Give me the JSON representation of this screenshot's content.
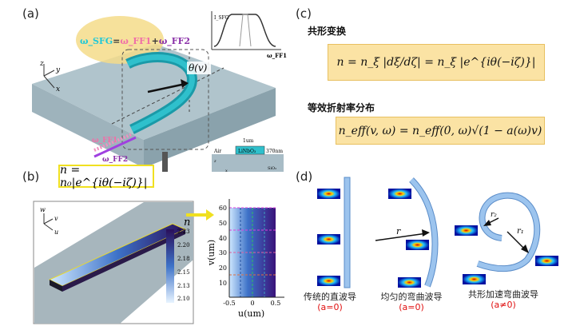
{
  "panel_a": {
    "label": "(a)",
    "omega_eq": {
      "sfg": "ω_SFG",
      "eq": "=",
      "ff1": "ω_FF1",
      "plus": "+",
      "ff2": "ω_FF2"
    },
    "theta_label": "θ(v)",
    "axes": {
      "z": "z",
      "y": "y",
      "x": "x"
    },
    "input_ff1": "ω_FF1",
    "input_ff2": "ω_FF2",
    "inset_plot": {
      "ylabel": "I_SFG",
      "xlabel": "ω_FF1"
    },
    "cross_section": {
      "width_label": "1um",
      "height_label": "370nm",
      "core": "LiNbO₃",
      "cladding": "Air",
      "substrate": "SiO₂",
      "axis_z": "z",
      "axis_x": "x"
    }
  },
  "panel_b": {
    "label": "(b)",
    "formula": "n = n₀|e^{iθ(−iζ)}|",
    "axes": {
      "w": "w",
      "v": "v",
      "u": "u"
    },
    "colorbar": {
      "title": "n",
      "ticks": [
        "2.23",
        "2.20",
        "2.18",
        "2.15",
        "2.13",
        "2.10"
      ]
    },
    "map": {
      "ylabel": "v(um)",
      "xlabel": "u(um)",
      "yticks": [
        "60",
        "50",
        "40",
        "30",
        "20",
        "10"
      ],
      "xticks": [
        "-0.5",
        "0",
        "0.5"
      ]
    }
  },
  "panel_c": {
    "label": "(c)",
    "heading1": "共形变换",
    "formula1": "n = n_ξ |dξ/dζ| = n_ξ |e^{iθ(−iζ)}|",
    "heading2": "等效折射率分布",
    "formula2": "n_eff(v, ω) = n_eff(0, ω)√(1 − a(ω)v)",
    "box_color": "#fbe3a4"
  },
  "panel_d": {
    "label": "(d)",
    "r": "r",
    "r1": "r₁",
    "r2": "r₂",
    "captions": [
      {
        "text": "传统的直波导",
        "alpha": "(a=0)"
      },
      {
        "text": "均匀的弯曲波导",
        "alpha": "(a=0)"
      },
      {
        "text": "共形加速弯曲波导",
        "alpha": "(a≠0)"
      }
    ],
    "waveguide_color": "#9cc4ee"
  }
}
